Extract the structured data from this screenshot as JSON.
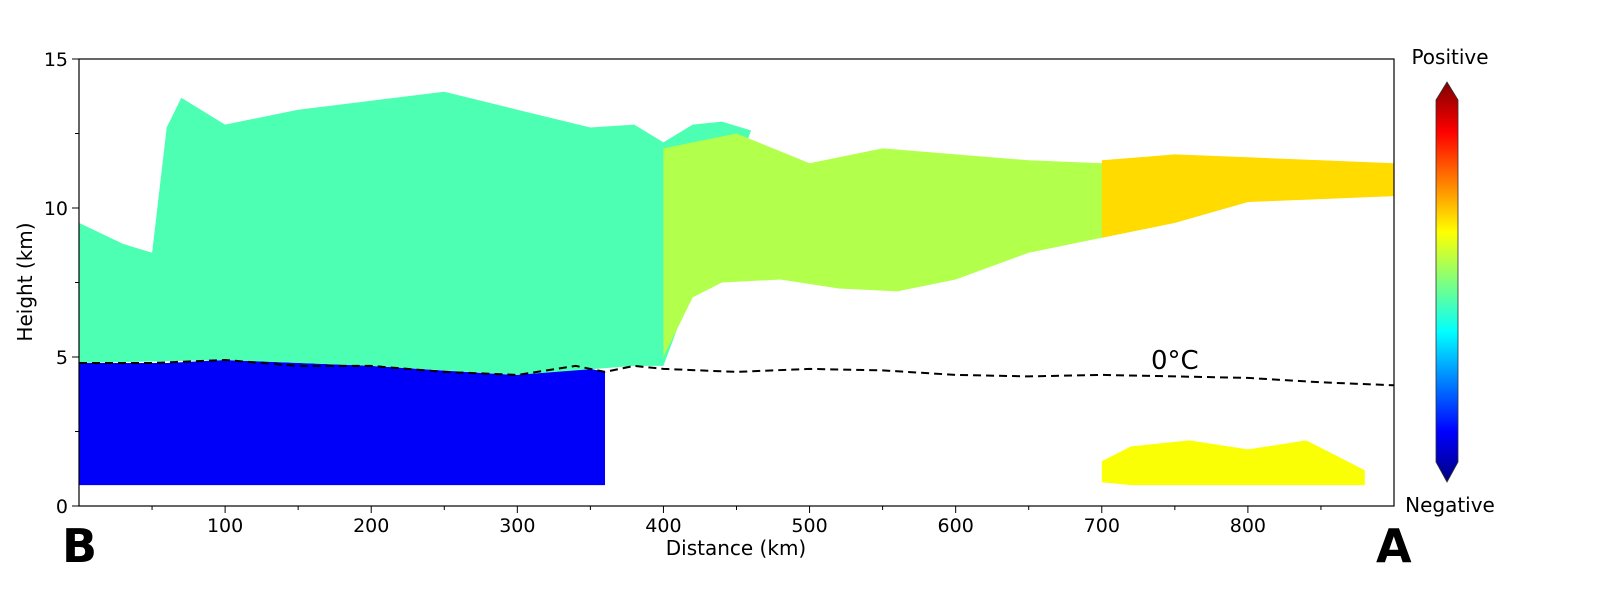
{
  "chart_data": {
    "type": "heatmap",
    "xlabel": "Distance (km)",
    "ylabel": "Height (km)",
    "xlim": [
      0,
      900
    ],
    "ylim": [
      0,
      15
    ],
    "xticks": [
      100,
      200,
      300,
      400,
      500,
      600,
      700,
      800
    ],
    "yticks": [
      0,
      5,
      10,
      15
    ],
    "endpoints": {
      "left": "B",
      "right": "A"
    },
    "colorbar": {
      "top_label": "Positive",
      "bottom_label": "Negative",
      "colormap": "jet"
    },
    "isotherm": {
      "label": "0°C",
      "x": [
        0,
        50,
        100,
        150,
        200,
        250,
        300,
        340,
        360,
        380,
        400,
        450,
        500,
        550,
        600,
        650,
        700,
        750,
        800,
        850,
        900
      ],
      "y": [
        4.8,
        4.8,
        4.9,
        4.7,
        4.7,
        4.5,
        4.4,
        4.7,
        4.5,
        4.7,
        4.6,
        4.5,
        4.6,
        4.55,
        4.4,
        4.35,
        4.4,
        4.35,
        4.3,
        4.15,
        4.05
      ]
    },
    "regions": [
      {
        "name": "below-melting-layer",
        "level": 0.12,
        "x": [
          0,
          30,
          60,
          100,
          200,
          280,
          300,
          340,
          360,
          360,
          340,
          300,
          200,
          100,
          0
        ],
        "y": [
          4.8,
          4.8,
          4.8,
          4.9,
          4.7,
          4.45,
          4.4,
          4.7,
          4.5,
          0.7,
          0.7,
          0.7,
          0.7,
          0.7,
          0.7
        ]
      },
      {
        "name": "upper-cloud-west",
        "level": 0.45,
        "x": [
          0,
          30,
          50,
          60,
          70,
          100,
          150,
          200,
          250,
          300,
          350,
          380,
          400,
          420,
          440,
          460,
          400,
          380,
          300,
          200,
          100,
          0
        ],
        "y": [
          9.5,
          8.8,
          8.5,
          12.7,
          13.7,
          12.8,
          13.3,
          13.6,
          13.9,
          13.3,
          12.7,
          12.8,
          12.2,
          12.8,
          12.9,
          12.6,
          4.7,
          4.7,
          4.4,
          4.7,
          4.9,
          4.8
        ]
      },
      {
        "name": "upper-cloud-central",
        "level": 0.55,
        "x": [
          400,
          450,
          500,
          550,
          600,
          650,
          700,
          750,
          800,
          850,
          880,
          880,
          850,
          800,
          750,
          700,
          650,
          600,
          560,
          520,
          480,
          440,
          420,
          400
        ],
        "y": [
          12.0,
          12.5,
          11.5,
          12.0,
          11.8,
          11.6,
          11.5,
          11.6,
          11.5,
          11.4,
          11.3,
          10.4,
          10.6,
          10.2,
          9.5,
          9.0,
          8.5,
          7.6,
          7.2,
          7.3,
          7.6,
          7.5,
          7.0,
          5.0
        ]
      },
      {
        "name": "upper-cloud-east",
        "level": 0.66,
        "x": [
          700,
          750,
          800,
          850,
          900,
          900,
          850,
          800,
          750,
          700
        ],
        "y": [
          11.6,
          11.8,
          11.7,
          11.6,
          11.5,
          10.4,
          10.3,
          10.2,
          9.5,
          9.0
        ]
      },
      {
        "name": "lower-cloud-east",
        "level": 0.62,
        "x": [
          700,
          720,
          760,
          800,
          840,
          880,
          880,
          840,
          800,
          760,
          720,
          700
        ],
        "y": [
          1.5,
          2.0,
          2.2,
          1.9,
          2.2,
          1.2,
          0.7,
          0.7,
          0.7,
          0.7,
          0.7,
          0.8
        ]
      }
    ]
  }
}
